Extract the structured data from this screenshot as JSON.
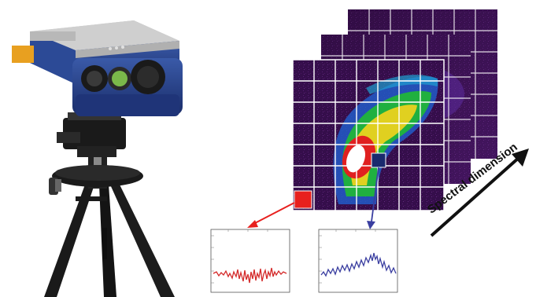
{
  "diagram": {
    "axis_label": "Spectral dimension",
    "colors": {
      "red_marker": "#e8201e",
      "blue_marker": "#1a2a6e",
      "red_trace": "#d42a2a",
      "blue_trace": "#3a3ea0",
      "arrow": "#111111"
    },
    "image_layers": [
      {
        "role": "back-layer",
        "palette": "dark-purple"
      },
      {
        "role": "middle-layer",
        "palette": "dark-purple"
      },
      {
        "role": "front-layer",
        "palette": "false-color-heatmap"
      }
    ],
    "icons": [
      "hyperspectral-camera-icon",
      "tripod-icon"
    ]
  }
}
